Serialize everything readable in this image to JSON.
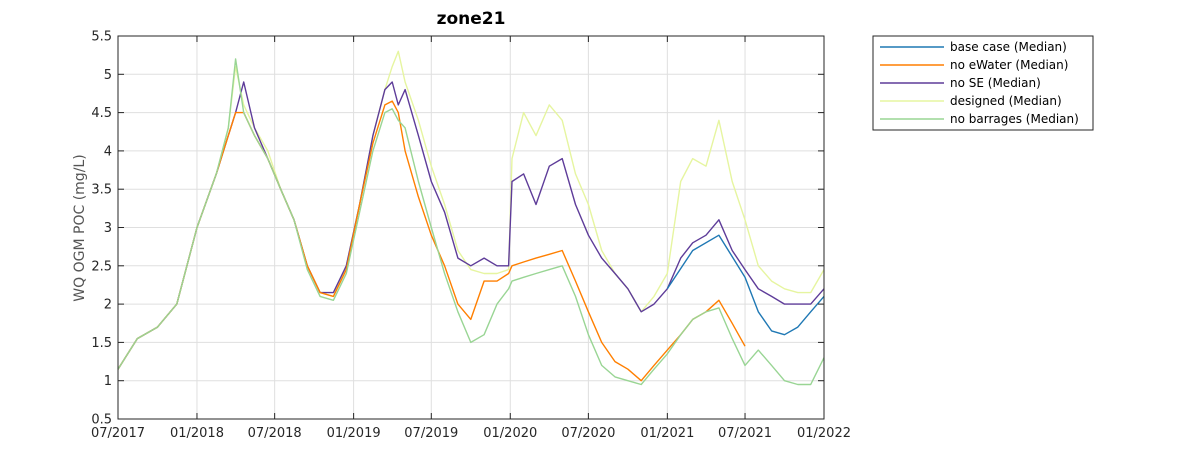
{
  "chart_data": {
    "type": "line",
    "title": "zone21",
    "xlabel": "",
    "ylabel": "WQ OGM POC (mg/L)",
    "xlim": [
      "2017-07-01",
      "2022-01-01"
    ],
    "ylim": [
      0.5,
      5.5
    ],
    "xticks": [
      "07/2017",
      "01/2018",
      "07/2018",
      "01/2019",
      "07/2019",
      "01/2020",
      "07/2020",
      "01/2021",
      "07/2021",
      "01/2022"
    ],
    "yticks": [
      "0.5",
      "1",
      "1.5",
      "2",
      "2.5",
      "3",
      "3.5",
      "4",
      "4.5",
      "5",
      "5.5"
    ],
    "grid": true,
    "legend_position": "outside-top-right",
    "series": [
      {
        "name": "designed (Median)",
        "color": "#e6f5a0",
        "points": [
          [
            "2017-07-01",
            1.15
          ],
          [
            "2017-08-15",
            1.55
          ],
          [
            "2017-10-01",
            1.7
          ],
          [
            "2017-11-15",
            2.0
          ],
          [
            "2018-01-01",
            3.0
          ],
          [
            "2018-02-15",
            3.7
          ],
          [
            "2018-03-15",
            4.3
          ],
          [
            "2018-04-01",
            5.1
          ],
          [
            "2018-04-20",
            4.6
          ],
          [
            "2018-05-15",
            4.3
          ],
          [
            "2018-06-15",
            4.0
          ],
          [
            "2018-07-15",
            3.5
          ],
          [
            "2018-08-15",
            3.1
          ],
          [
            "2018-09-15",
            2.5
          ],
          [
            "2018-10-15",
            2.15
          ],
          [
            "2018-11-15",
            2.1
          ],
          [
            "2018-12-15",
            2.5
          ],
          [
            "2019-01-15",
            3.3
          ],
          [
            "2019-02-15",
            4.2
          ],
          [
            "2019-03-15",
            4.8
          ],
          [
            "2019-04-01",
            5.1
          ],
          [
            "2019-04-15",
            5.3
          ],
          [
            "2019-05-01",
            4.9
          ],
          [
            "2019-06-01",
            4.4
          ],
          [
            "2019-07-01",
            3.8
          ],
          [
            "2019-08-01",
            3.3
          ],
          [
            "2019-09-01",
            2.7
          ],
          [
            "2019-10-01",
            2.45
          ],
          [
            "2019-11-01",
            2.4
          ],
          [
            "2019-12-01",
            2.4
          ],
          [
            "2019-12-28",
            2.45
          ],
          [
            "2020-01-05",
            3.9
          ],
          [
            "2020-02-01",
            4.5
          ],
          [
            "2020-03-01",
            4.2
          ],
          [
            "2020-04-01",
            4.6
          ],
          [
            "2020-05-01",
            4.4
          ],
          [
            "2020-06-01",
            3.7
          ],
          [
            "2020-07-01",
            3.3
          ],
          [
            "2020-08-01",
            2.7
          ],
          [
            "2020-09-01",
            2.4
          ],
          [
            "2020-10-01",
            2.2
          ],
          [
            "2020-11-01",
            1.9
          ],
          [
            "2020-12-01",
            2.1
          ],
          [
            "2021-01-01",
            2.4
          ],
          [
            "2021-02-01",
            3.6
          ],
          [
            "2021-03-01",
            3.9
          ],
          [
            "2021-04-01",
            3.8
          ],
          [
            "2021-05-01",
            4.4
          ],
          [
            "2021-06-01",
            3.6
          ],
          [
            "2021-07-01",
            3.1
          ],
          [
            "2021-08-01",
            2.5
          ],
          [
            "2021-09-01",
            2.3
          ],
          [
            "2021-10-01",
            2.2
          ],
          [
            "2021-11-01",
            2.15
          ],
          [
            "2021-12-01",
            2.15
          ],
          [
            "2022-01-01",
            2.45
          ]
        ]
      },
      {
        "name": "no SE (Median)",
        "color": "#5e3c99",
        "points": [
          [
            "2017-07-01",
            1.15
          ],
          [
            "2017-08-15",
            1.55
          ],
          [
            "2017-10-01",
            1.7
          ],
          [
            "2017-11-15",
            2.0
          ],
          [
            "2018-01-01",
            3.0
          ],
          [
            "2018-02-15",
            3.7
          ],
          [
            "2018-03-15",
            4.2
          ],
          [
            "2018-04-01",
            4.5
          ],
          [
            "2018-04-20",
            4.9
          ],
          [
            "2018-05-15",
            4.3
          ],
          [
            "2018-06-15",
            3.9
          ],
          [
            "2018-07-15",
            3.5
          ],
          [
            "2018-08-15",
            3.1
          ],
          [
            "2018-09-15",
            2.5
          ],
          [
            "2018-10-15",
            2.15
          ],
          [
            "2018-11-15",
            2.15
          ],
          [
            "2018-12-15",
            2.5
          ],
          [
            "2019-01-15",
            3.3
          ],
          [
            "2019-02-15",
            4.2
          ],
          [
            "2019-03-15",
            4.8
          ],
          [
            "2019-04-01",
            4.9
          ],
          [
            "2019-04-15",
            4.6
          ],
          [
            "2019-05-01",
            4.8
          ],
          [
            "2019-06-01",
            4.2
          ],
          [
            "2019-07-01",
            3.6
          ],
          [
            "2019-08-01",
            3.2
          ],
          [
            "2019-09-01",
            2.6
          ],
          [
            "2019-10-01",
            2.5
          ],
          [
            "2019-11-01",
            2.6
          ],
          [
            "2019-12-01",
            2.5
          ],
          [
            "2019-12-28",
            2.5
          ],
          [
            "2020-01-05",
            3.6
          ],
          [
            "2020-02-01",
            3.7
          ],
          [
            "2020-03-01",
            3.3
          ],
          [
            "2020-04-01",
            3.8
          ],
          [
            "2020-05-01",
            3.9
          ],
          [
            "2020-06-01",
            3.3
          ],
          [
            "2020-07-01",
            2.9
          ],
          [
            "2020-08-01",
            2.6
          ],
          [
            "2020-09-01",
            2.4
          ],
          [
            "2020-10-01",
            2.2
          ],
          [
            "2020-11-01",
            1.9
          ],
          [
            "2020-12-01",
            2.0
          ],
          [
            "2021-01-01",
            2.2
          ],
          [
            "2021-02-01",
            2.6
          ],
          [
            "2021-03-01",
            2.8
          ],
          [
            "2021-04-01",
            2.9
          ],
          [
            "2021-05-01",
            3.1
          ],
          [
            "2021-06-01",
            2.7
          ],
          [
            "2021-07-01",
            2.45
          ],
          [
            "2021-08-01",
            2.2
          ],
          [
            "2021-09-01",
            2.1
          ],
          [
            "2021-10-01",
            2.0
          ],
          [
            "2021-11-01",
            2.0
          ],
          [
            "2021-12-01",
            2.0
          ],
          [
            "2022-01-01",
            2.2
          ]
        ]
      },
      {
        "name": "base case (Median)",
        "color": "#1f78b4",
        "points": [
          [
            "2021-01-01",
            2.2
          ],
          [
            "2021-03-01",
            2.7
          ],
          [
            "2021-05-01",
            2.9
          ],
          [
            "2021-07-01",
            2.35
          ],
          [
            "2021-08-01",
            1.9
          ],
          [
            "2021-09-01",
            1.65
          ],
          [
            "2021-10-01",
            1.6
          ],
          [
            "2021-11-01",
            1.7
          ],
          [
            "2021-12-01",
            1.9
          ],
          [
            "2022-01-01",
            2.1
          ]
        ]
      },
      {
        "name": "no eWater (Median)",
        "color": "#ff7f00",
        "points": [
          [
            "2017-07-01",
            1.15
          ],
          [
            "2017-08-15",
            1.55
          ],
          [
            "2017-10-01",
            1.7
          ],
          [
            "2017-11-15",
            2.0
          ],
          [
            "2018-01-01",
            3.0
          ],
          [
            "2018-02-15",
            3.7
          ],
          [
            "2018-03-15",
            4.2
          ],
          [
            "2018-04-01",
            4.5
          ],
          [
            "2018-04-20",
            4.5
          ],
          [
            "2018-05-15",
            4.2
          ],
          [
            "2018-06-15",
            3.9
          ],
          [
            "2018-07-15",
            3.5
          ],
          [
            "2018-08-15",
            3.1
          ],
          [
            "2018-09-15",
            2.5
          ],
          [
            "2018-10-15",
            2.15
          ],
          [
            "2018-11-15",
            2.1
          ],
          [
            "2018-12-15",
            2.45
          ],
          [
            "2019-01-15",
            3.3
          ],
          [
            "2019-02-15",
            4.1
          ],
          [
            "2019-03-15",
            4.6
          ],
          [
            "2019-04-01",
            4.65
          ],
          [
            "2019-04-15",
            4.5
          ],
          [
            "2019-05-01",
            4.0
          ],
          [
            "2019-06-01",
            3.4
          ],
          [
            "2019-07-01",
            2.9
          ],
          [
            "2019-08-01",
            2.5
          ],
          [
            "2019-09-01",
            2.0
          ],
          [
            "2019-10-01",
            1.8
          ],
          [
            "2019-11-01",
            2.3
          ],
          [
            "2019-12-01",
            2.3
          ],
          [
            "2019-12-28",
            2.4
          ],
          [
            "2020-01-05",
            2.5
          ],
          [
            "2020-02-01",
            2.55
          ],
          [
            "2020-03-01",
            2.6
          ],
          [
            "2020-04-01",
            2.65
          ],
          [
            "2020-05-01",
            2.7
          ],
          [
            "2020-06-01",
            2.3
          ],
          [
            "2020-07-01",
            1.9
          ],
          [
            "2020-08-01",
            1.5
          ],
          [
            "2020-09-01",
            1.25
          ],
          [
            "2020-10-01",
            1.15
          ],
          [
            "2020-11-01",
            1.0
          ],
          [
            "2020-12-01",
            1.2
          ],
          [
            "2021-01-01",
            1.4
          ],
          [
            "2021-02-01",
            1.6
          ],
          [
            "2021-03-01",
            1.8
          ],
          [
            "2021-04-01",
            1.9
          ],
          [
            "2021-05-01",
            2.05
          ],
          [
            "2021-06-01",
            1.75
          ],
          [
            "2021-07-01",
            1.45
          ]
        ]
      },
      {
        "name": "no barrages (Median)",
        "color": "#99d594",
        "points": [
          [
            "2017-07-01",
            1.15
          ],
          [
            "2017-08-15",
            1.55
          ],
          [
            "2017-10-01",
            1.7
          ],
          [
            "2017-11-15",
            2.0
          ],
          [
            "2018-01-01",
            3.0
          ],
          [
            "2018-02-15",
            3.7
          ],
          [
            "2018-03-15",
            4.3
          ],
          [
            "2018-04-01",
            5.2
          ],
          [
            "2018-04-20",
            4.5
          ],
          [
            "2018-05-15",
            4.2
          ],
          [
            "2018-06-15",
            3.9
          ],
          [
            "2018-07-15",
            3.5
          ],
          [
            "2018-08-15",
            3.1
          ],
          [
            "2018-09-15",
            2.45
          ],
          [
            "2018-10-15",
            2.1
          ],
          [
            "2018-11-15",
            2.05
          ],
          [
            "2018-12-15",
            2.4
          ],
          [
            "2019-01-15",
            3.2
          ],
          [
            "2019-02-15",
            4.0
          ],
          [
            "2019-03-15",
            4.5
          ],
          [
            "2019-04-01",
            4.55
          ],
          [
            "2019-04-15",
            4.4
          ],
          [
            "2019-05-01",
            4.3
          ],
          [
            "2019-06-01",
            3.6
          ],
          [
            "2019-07-01",
            3.0
          ],
          [
            "2019-08-01",
            2.4
          ],
          [
            "2019-09-01",
            1.9
          ],
          [
            "2019-10-01",
            1.5
          ],
          [
            "2019-11-01",
            1.6
          ],
          [
            "2019-12-01",
            2.0
          ],
          [
            "2019-12-28",
            2.2
          ],
          [
            "2020-01-05",
            2.3
          ],
          [
            "2020-02-01",
            2.35
          ],
          [
            "2020-03-01",
            2.4
          ],
          [
            "2020-04-01",
            2.45
          ],
          [
            "2020-05-01",
            2.5
          ],
          [
            "2020-06-01",
            2.1
          ],
          [
            "2020-07-01",
            1.6
          ],
          [
            "2020-08-01",
            1.2
          ],
          [
            "2020-09-01",
            1.05
          ],
          [
            "2020-10-01",
            1.0
          ],
          [
            "2020-11-01",
            0.95
          ],
          [
            "2020-12-01",
            1.15
          ],
          [
            "2021-01-01",
            1.35
          ],
          [
            "2021-02-01",
            1.6
          ],
          [
            "2021-03-01",
            1.8
          ],
          [
            "2021-04-01",
            1.9
          ],
          [
            "2021-05-01",
            1.95
          ],
          [
            "2021-06-01",
            1.55
          ],
          [
            "2021-07-01",
            1.2
          ],
          [
            "2021-08-01",
            1.4
          ],
          [
            "2021-09-01",
            1.2
          ],
          [
            "2021-10-01",
            1.0
          ],
          [
            "2021-11-01",
            0.95
          ],
          [
            "2021-12-01",
            0.95
          ],
          [
            "2022-01-01",
            1.3
          ]
        ]
      }
    ],
    "legend": [
      {
        "name": "base case (Median)",
        "color": "#1f78b4"
      },
      {
        "name": "no eWater (Median)",
        "color": "#ff7f00"
      },
      {
        "name": "no SE (Median)",
        "color": "#5e3c99"
      },
      {
        "name": "designed (Median)",
        "color": "#e6f5a0"
      },
      {
        "name": "no barrages (Median)",
        "color": "#99d594"
      }
    ]
  }
}
